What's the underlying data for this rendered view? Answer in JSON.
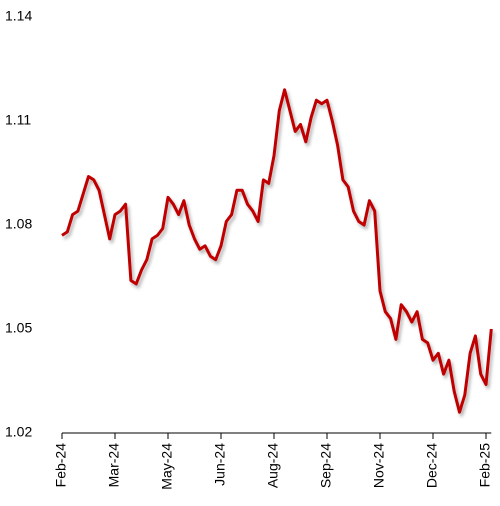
{
  "chart_data": {
    "type": "line",
    "categories": [
      "Feb-24",
      null,
      null,
      null,
      null,
      null,
      null,
      null,
      null,
      null,
      "Mar-24",
      null,
      null,
      null,
      null,
      null,
      null,
      null,
      null,
      null,
      "May-24",
      null,
      null,
      null,
      null,
      null,
      null,
      null,
      null,
      null,
      "Jun-24",
      null,
      null,
      null,
      null,
      null,
      null,
      null,
      null,
      null,
      "Aug-24",
      null,
      null,
      null,
      null,
      null,
      null,
      null,
      null,
      null,
      "Sep-24",
      null,
      null,
      null,
      null,
      null,
      null,
      null,
      null,
      null,
      "Nov-24",
      null,
      null,
      null,
      null,
      null,
      null,
      null,
      null,
      null,
      "Dec-24",
      null,
      null,
      null,
      null,
      null,
      null,
      null,
      null,
      null,
      "Feb-25",
      null
    ],
    "values": [
      1.077,
      1.078,
      1.083,
      1.084,
      1.089,
      1.094,
      1.093,
      1.09,
      1.083,
      1.076,
      1.083,
      1.084,
      1.086,
      1.064,
      1.063,
      1.067,
      1.07,
      1.076,
      1.077,
      1.079,
      1.088,
      1.086,
      1.083,
      1.087,
      1.08,
      1.076,
      1.073,
      1.074,
      1.071,
      1.07,
      1.074,
      1.081,
      1.083,
      1.09,
      1.09,
      1.086,
      1.084,
      1.081,
      1.093,
      1.092,
      1.1,
      1.113,
      1.119,
      1.113,
      1.107,
      1.109,
      1.104,
      1.111,
      1.116,
      1.115,
      1.116,
      1.11,
      1.103,
      1.093,
      1.091,
      1.084,
      1.081,
      1.08,
      1.087,
      1.084,
      1.061,
      1.055,
      1.053,
      1.047,
      1.057,
      1.055,
      1.052,
      1.055,
      1.047,
      1.046,
      1.041,
      1.043,
      1.037,
      1.041,
      1.032,
      1.026,
      1.031,
      1.043,
      1.048,
      1.037,
      1.034,
      1.05
    ],
    "color": "#c00000",
    "ylim": [
      1.02,
      1.14
    ],
    "yticks": [
      1.02,
      1.05,
      1.08,
      1.11,
      1.14
    ],
    "grid": false
  }
}
